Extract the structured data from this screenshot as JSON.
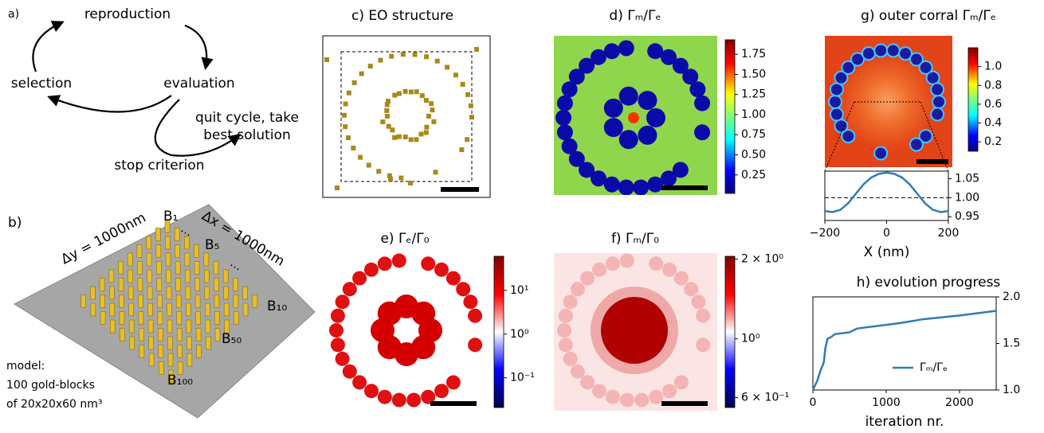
{
  "panel_a": {
    "label": "a)",
    "reproduction": "reproduction",
    "evaluation": "evaluation",
    "selection": "selection",
    "quit": [
      "quit cycle, take",
      "best solution"
    ],
    "stop": "stop criterion"
  },
  "panel_b": {
    "label": "b)",
    "delta_y": "Δy = 1000nm",
    "delta_x": "Δx = 1000nm",
    "blocks": [
      "B₁",
      "B₅",
      "B₁₀",
      "B₅₀",
      "B₁₀₀"
    ],
    "ellipses": [
      "…",
      "…"
    ],
    "model": [
      "model:",
      "100 gold-blocks",
      "of 20x20x60 nm³"
    ]
  },
  "panel_c": {
    "title": "c) EO structure"
  },
  "chart_data": [
    {
      "type": "colorbar",
      "title": "d) Γₘ/Γₑ",
      "colormap": "jet",
      "ylim": [
        0.02,
        1.93
      ],
      "yticks": [
        0.25,
        {
          "value": 0.5,
          "label": "0.50"
        },
        0.75,
        {
          "value": 1.0,
          "label": "1.00"
        },
        1.25,
        {
          "value": 1.5,
          "label": "1.50"
        },
        1.75
      ]
    },
    {
      "type": "colorbar",
      "title": "e) Γₑ/Γ₀",
      "colormap": "seismic",
      "log_scale": true,
      "ylim": [
        0.021,
        60
      ],
      "yticks": [
        {
          "value": 0.1,
          "label": "10⁻¹"
        },
        {
          "value": 1,
          "label": "10⁰"
        },
        {
          "value": 10,
          "label": "10¹"
        }
      ]
    },
    {
      "type": "colorbar",
      "title": "f) Γₘ/Γ₀",
      "colormap": "seismic",
      "log_scale": true,
      "ylim": [
        0.55,
        2.05
      ],
      "yticks": [
        {
          "value": 0.6,
          "label": "6 × 10⁻¹"
        },
        {
          "value": 1,
          "label": "10⁰"
        },
        {
          "value": 2,
          "label": "2 × 10⁰"
        }
      ]
    },
    {
      "type": "colorbar",
      "title": "g) outer corral Γₘ/Γₑ",
      "colormap": "jet",
      "ylim": [
        0.1,
        1.2
      ],
      "yticks": [
        0.2,
        0.4,
        0.6,
        0.8,
        {
          "value": 1.0,
          "label": "1.0"
        }
      ]
    },
    {
      "type": "line",
      "xlabel": "X (nm)",
      "color": "#2f7bb5",
      "reference": 1.0,
      "x": [
        -200,
        -175,
        -150,
        -125,
        -100,
        -75,
        -50,
        -25,
        0,
        25,
        50,
        75,
        100,
        125,
        150,
        175,
        200
      ],
      "values": [
        0.965,
        0.962,
        0.968,
        0.985,
        1.01,
        1.035,
        1.053,
        1.063,
        1.066,
        1.063,
        1.053,
        1.035,
        1.01,
        0.985,
        0.968,
        0.962,
        0.965
      ],
      "xlim": [
        -200,
        200
      ],
      "ylim": [
        0.94,
        1.07
      ],
      "xticks": [
        {
          "value": -200,
          "label": "−200"
        },
        0,
        200
      ],
      "yticks": [
        0.95,
        {
          "value": 1.0,
          "label": "1.00"
        },
        1.05
      ],
      "y_axis_side": "right"
    },
    {
      "type": "line",
      "title": "h) evolution progress",
      "xlabel": "iteration nr.",
      "x": [
        0,
        30,
        60,
        100,
        150,
        170,
        200,
        250,
        300,
        500,
        600,
        800,
        1000,
        1200,
        1500,
        2000,
        2500
      ],
      "series": [
        {
          "name": "Γₘ/Γₑ",
          "color": "#2f7bb5",
          "values": [
            1.0,
            1.05,
            1.1,
            1.2,
            1.3,
            1.45,
            1.55,
            1.57,
            1.6,
            1.62,
            1.66,
            1.68,
            1.7,
            1.72,
            1.76,
            1.8,
            1.85
          ]
        }
      ],
      "xlim": [
        0,
        2500
      ],
      "ylim": [
        1.0,
        2.0
      ],
      "xticks": [
        0,
        1000,
        2000
      ],
      "yticks": [
        {
          "value": 1.0,
          "label": "1.0"
        },
        1.5,
        {
          "value": 2.0,
          "label": "2.0"
        }
      ],
      "y_axis_side": "right",
      "legend": "lower right"
    }
  ]
}
